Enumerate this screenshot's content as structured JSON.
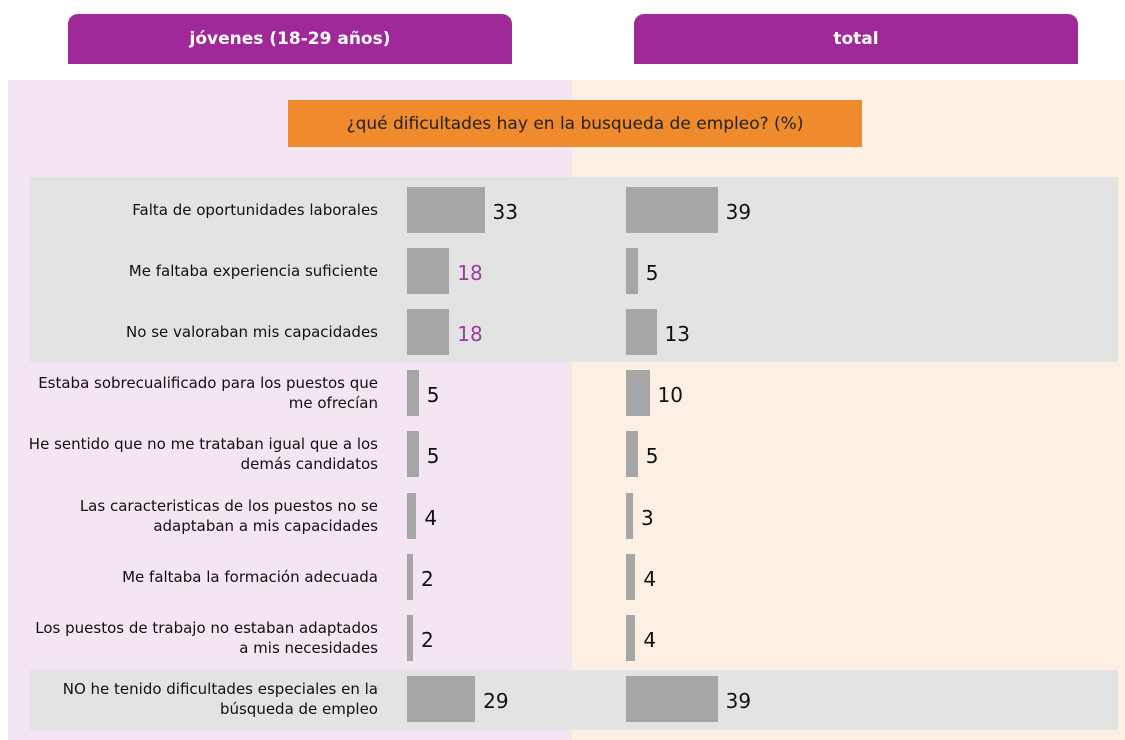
{
  "chart_data": {
    "type": "bar",
    "orientation": "horizontal",
    "title": "¿qué dificultades  hay en la busqueda de empleo? (%)",
    "categories": [
      "Falta de oportunidades laborales",
      "Me faltaba experiencia suficiente",
      "No se valoraban mis capacidades",
      "Estaba sobrecualificado para los puestos que me ofrecían",
      "He sentido que no me trataban igual que a los demás candidatos",
      "Las caracteristicas de los puestos no se adaptaban a mis capacidades",
      "Me faltaba la formación adecuada",
      "Los puestos de trabajo no estaban adaptados a mis necesidades",
      "NO he tenido dificultades especiales en la búsqueda de empleo"
    ],
    "series": [
      {
        "name": "jóvenes (18-29 años)",
        "color": "#a6a6a6",
        "values": [
          33,
          18,
          18,
          5,
          5,
          4,
          2,
          2,
          29
        ],
        "label_colors": [
          "#111111",
          "#9b3d9b",
          "#9b3d9b",
          "#111111",
          "#111111",
          "#111111",
          "#111111",
          "#111111",
          "#111111"
        ]
      },
      {
        "name": "total",
        "color": "#a6a6a6",
        "values": [
          39,
          5,
          13,
          10,
          5,
          3,
          4,
          4,
          39
        ],
        "label_colors": [
          "#111111",
          "#111111",
          "#111111",
          "#111111",
          "#111111",
          "#111111",
          "#111111",
          "#111111",
          "#111111"
        ]
      }
    ]
  }
}
